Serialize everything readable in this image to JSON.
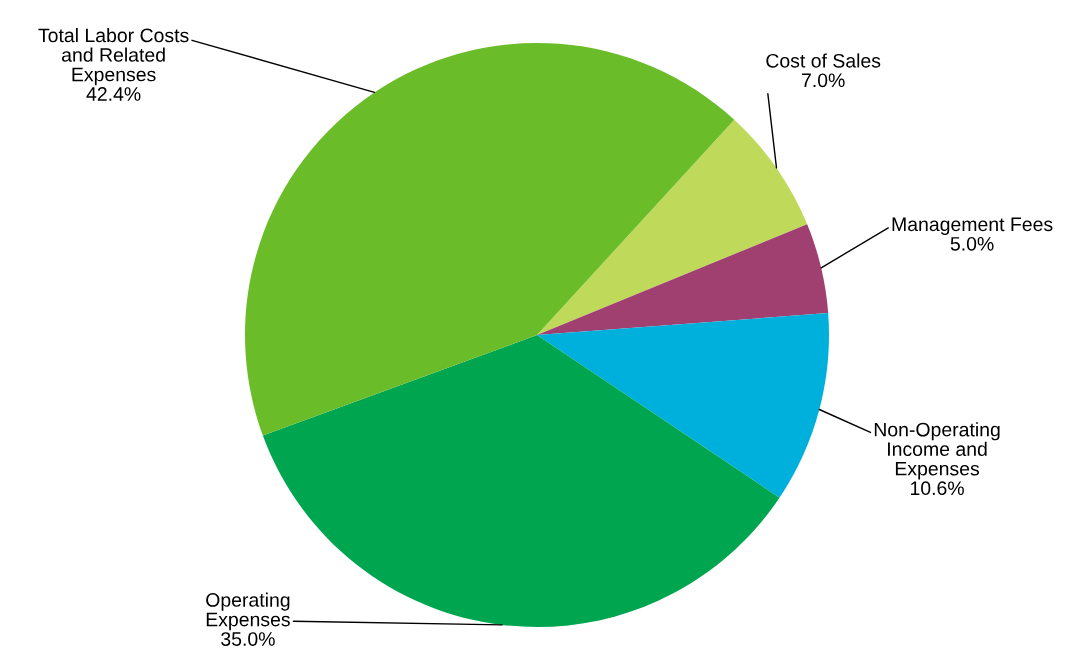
{
  "chart_data": {
    "type": "pie",
    "categories": [
      "Cost of Sales",
      "Management Fees",
      "Non-Operating\nIncome and\nExpenses",
      "Operating\nExpenses",
      "Total Labor Costs\nand Related\nExpenses"
    ],
    "values": [
      7.0,
      5.0,
      10.6,
      35.0,
      42.4
    ],
    "value_labels": [
      "7.0%",
      "5.0%",
      "10.6%",
      "35.0%",
      "42.4%"
    ],
    "colors": [
      "#bfd95a",
      "#a04070",
      "#00b0dc",
      "#00a550",
      "#6abd28"
    ]
  }
}
